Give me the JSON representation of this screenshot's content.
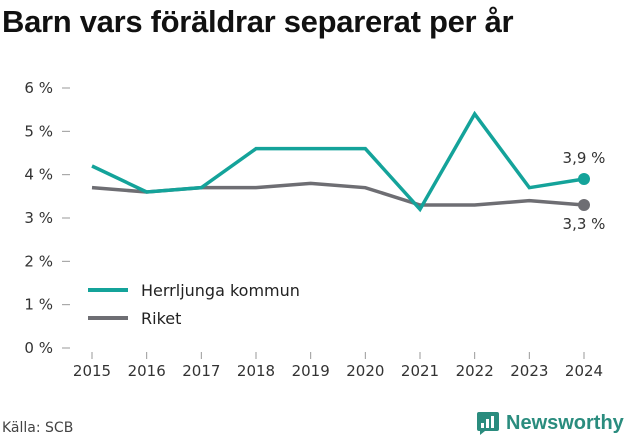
{
  "title": "Barn vars föräldrar separerat per år",
  "source": "Källa: SCB",
  "brand": "Newsworthy",
  "colors": {
    "herrljunga": "#14a39a",
    "riket": "#6e6e73",
    "brand": "#2a8c7e"
  },
  "chart_data": {
    "type": "line",
    "x": [
      "2015",
      "2016",
      "2017",
      "2018",
      "2019",
      "2020",
      "2021",
      "2022",
      "2023",
      "2024"
    ],
    "yticks": [
      "0 %",
      "1 %",
      "2 %",
      "3 %",
      "4 %",
      "5 %",
      "6 %"
    ],
    "ylim": [
      0,
      6
    ],
    "series": [
      {
        "name": "Herrljunga kommun",
        "color": "#14a39a",
        "values": [
          4.2,
          3.6,
          3.7,
          4.6,
          4.6,
          4.6,
          3.2,
          5.4,
          3.7,
          3.9
        ],
        "end_label": "3,9 %"
      },
      {
        "name": "Riket",
        "color": "#6e6e73",
        "values": [
          3.7,
          3.6,
          3.7,
          3.7,
          3.8,
          3.7,
          3.3,
          3.3,
          3.4,
          3.3
        ],
        "end_label": "3,3 %"
      }
    ],
    "grid": false,
    "legend": "bottom-left"
  }
}
